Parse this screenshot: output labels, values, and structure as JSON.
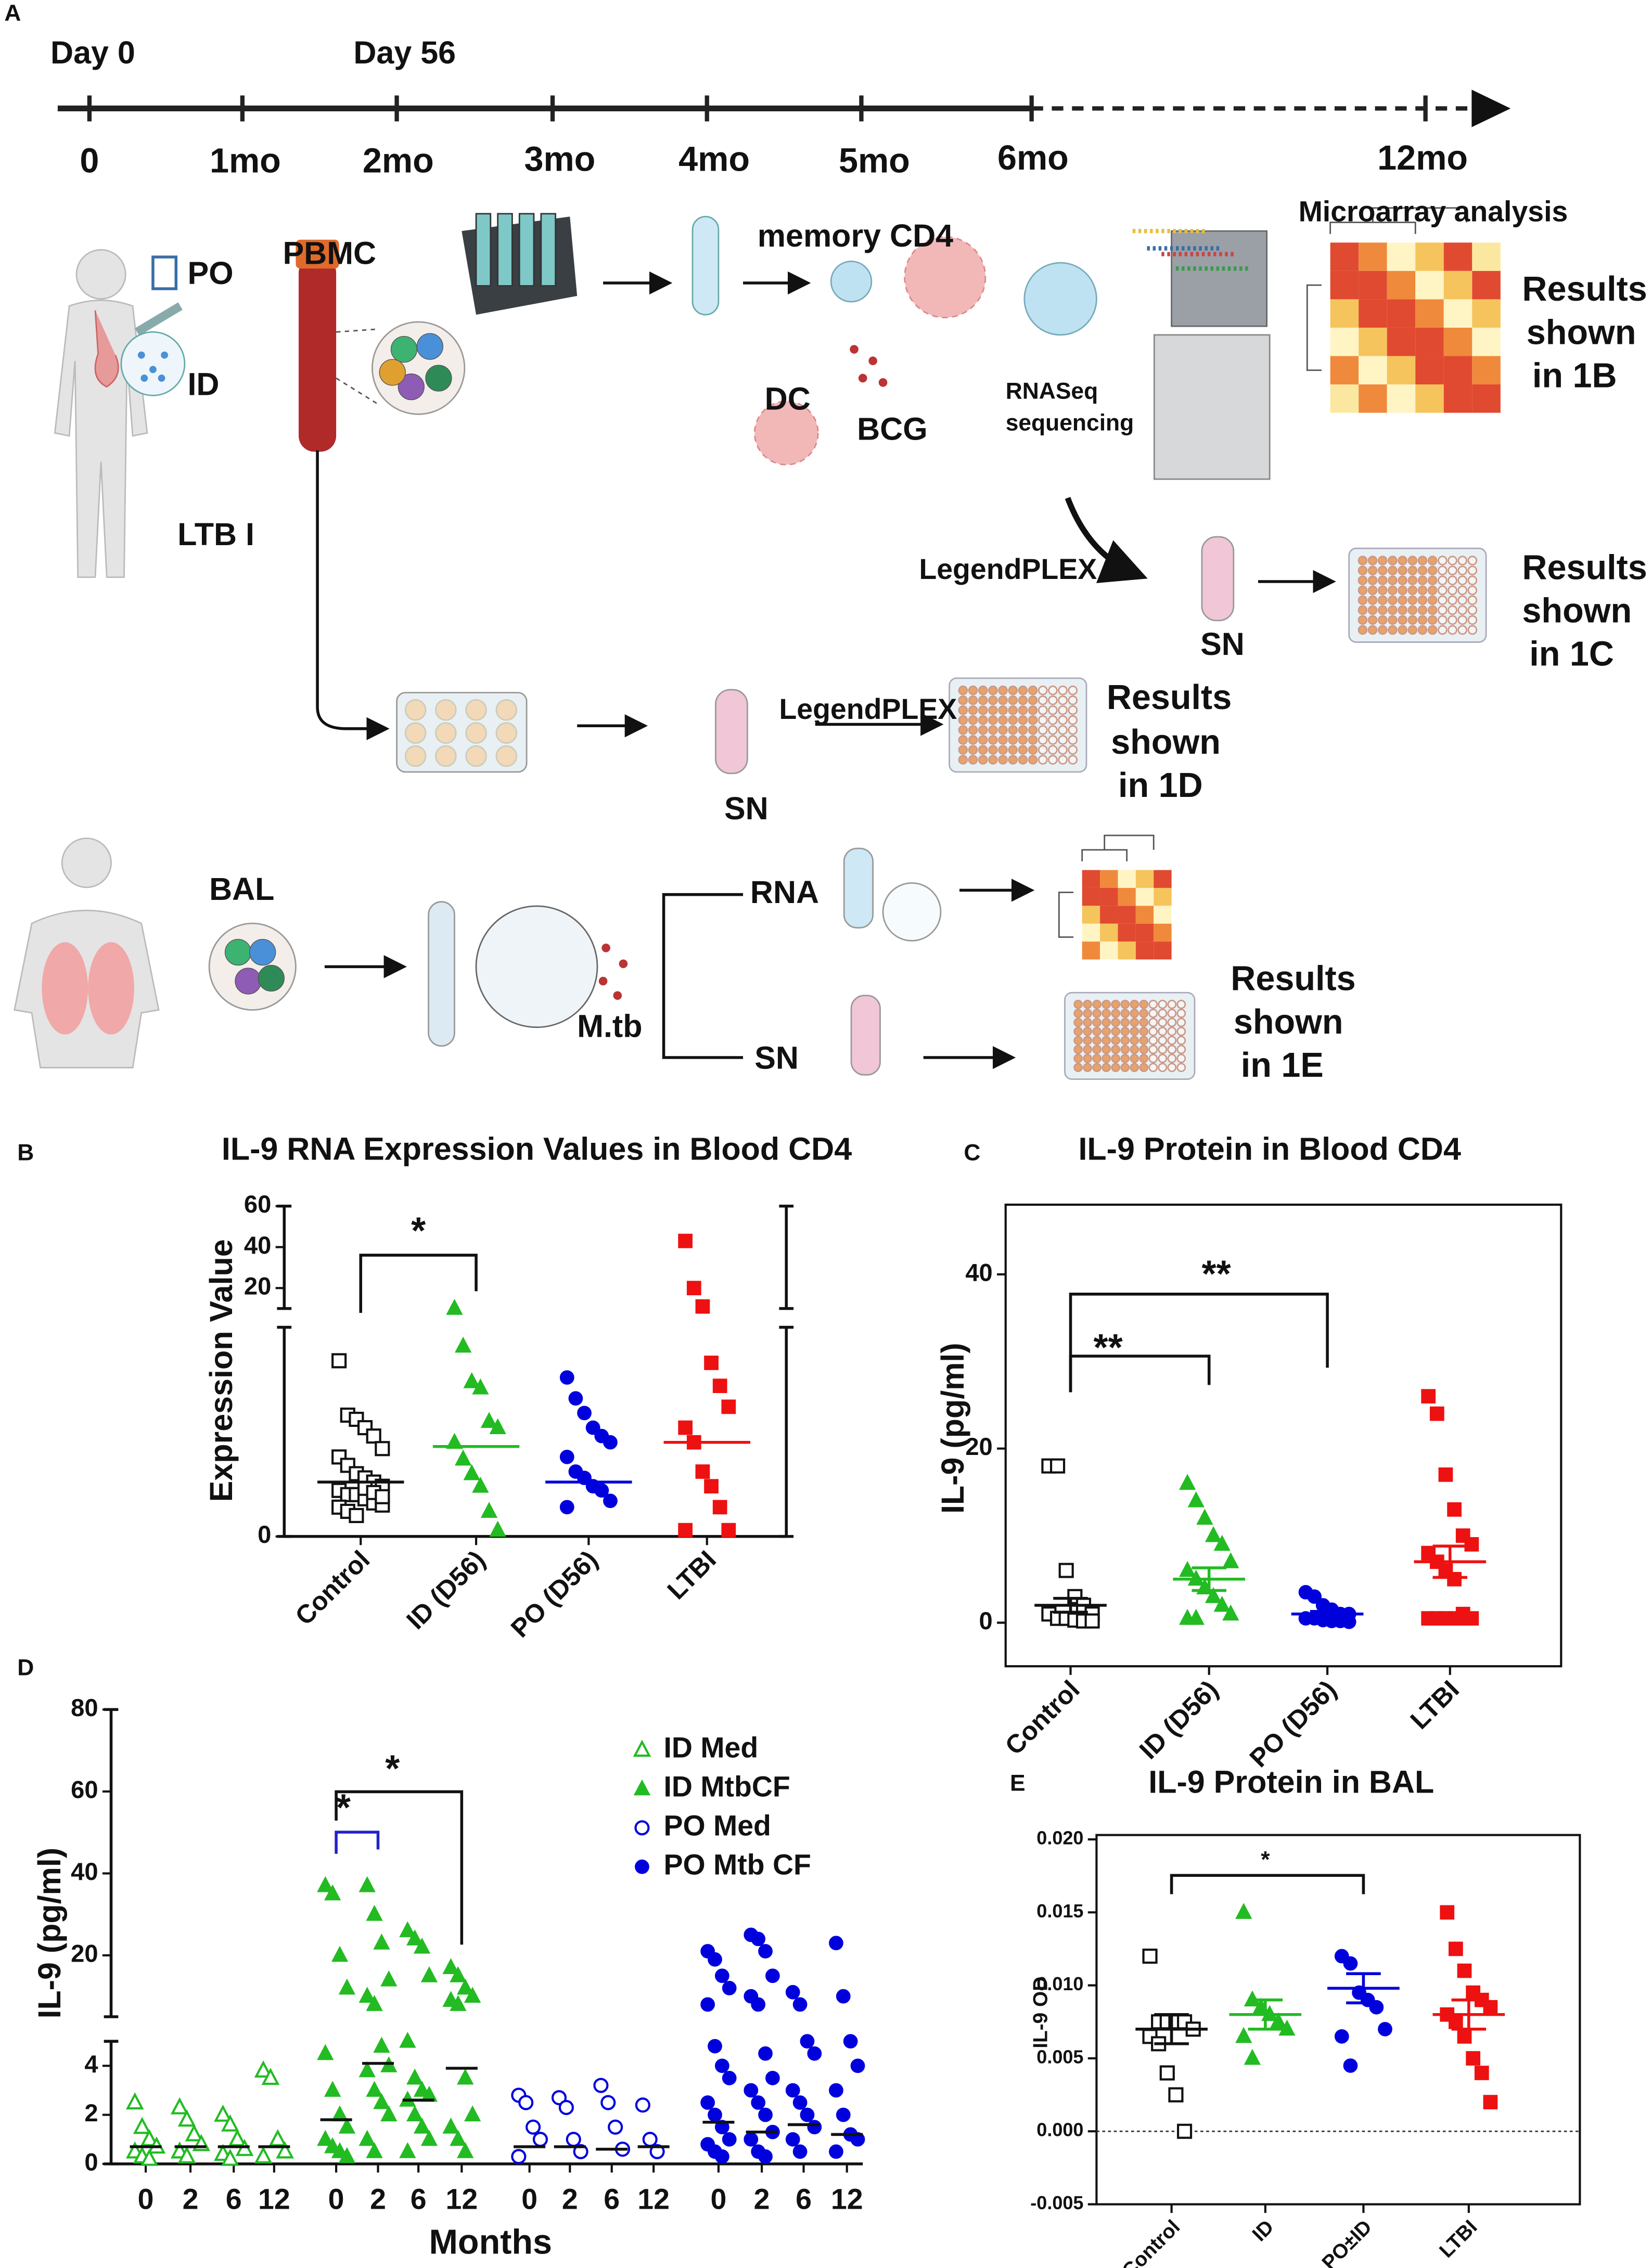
{
  "diagram": {
    "panel": "A",
    "texts": [
      "Day 0",
      "Day 56",
      "0",
      "1mo",
      "2mo",
      "3mo",
      "4mo",
      "5mo",
      "6mo",
      "12mo",
      "PO",
      "ID",
      "PBMC",
      "LTB I",
      "memory CD4",
      "DC",
      "BCG",
      "RNASeq",
      "sequencing",
      "Microarray analysis",
      "Results",
      "shown",
      "in 1B",
      "LegendPLEX",
      "SN",
      "Results",
      "shown",
      "in 1C",
      "LegendPLEX",
      "SN",
      "Results",
      "shown",
      "in 1D",
      "BAL",
      "RNA",
      "SN",
      "M.tb",
      "Results",
      "shown",
      "in 1E"
    ]
  },
  "chart_data": [
    {
      "type": "dot",
      "panel": "B",
      "title": "IL-9 RNA Expression Values in Blood CD4",
      "y_label": "Expression Value",
      "categories": [
        "Control",
        "ID (D56)",
        "PO (D56)",
        "LTBI"
      ],
      "y_segments": [
        {
          "ylim": [
            0,
            10
          ],
          "yticks": [
            0
          ]
        },
        {
          "ylim": [
            10,
            60
          ],
          "yticks": [
            20,
            40,
            60
          ]
        }
      ],
      "groups": [
        {
          "color": "#111111",
          "marker": "square-open",
          "values": [
            8.4,
            5.8,
            5.6,
            5.2,
            4.8,
            4.2,
            3.8,
            3.4,
            3.0,
            2.8,
            2.6,
            2.4,
            2.2,
            2.0,
            2.0,
            1.8,
            1.6,
            1.5,
            1.4,
            1.2,
            1.0,
            2.3,
            2.1,
            1.9
          ],
          "mean": 2.6
        },
        {
          "color": "#22bb22",
          "marker": "triangle",
          "values": [
            10.1,
            9.1,
            7.4,
            7.1,
            5.5,
            5.2,
            4.5,
            3.7,
            3.0,
            2.4,
            1.2,
            0.3
          ],
          "mean": 4.3
        },
        {
          "color": "#0000dd",
          "marker": "circle",
          "values": [
            7.6,
            6.6,
            5.9,
            5.2,
            4.8,
            4.5,
            3.8,
            3.1,
            2.8,
            2.4,
            2.2,
            1.7,
            1.4
          ],
          "mean": 2.6
        },
        {
          "color": "#ee1111",
          "marker": "square",
          "values": [
            43,
            20,
            11,
            8.3,
            7.2,
            6.2,
            5.2,
            4.5,
            3.1,
            2.4,
            1.4,
            0.3,
            0.3
          ],
          "mean": 4.5
        }
      ],
      "annotations": [
        {
          "text": "*",
          "from": 0,
          "to": 1,
          "color": "#111111"
        }
      ]
    },
    {
      "type": "dot",
      "panel": "C",
      "title": "IL-9 Protein  in Blood CD4",
      "y_label": "IL-9 (pg/ml)",
      "categories": [
        "Control",
        "ID (D56)",
        "PO (D56)",
        "LTBI"
      ],
      "ylim": [
        -5,
        48
      ],
      "yticks": [
        0,
        20,
        40
      ],
      "groups": [
        {
          "color": "#111111",
          "marker": "square-open",
          "values": [
            18,
            18,
            6,
            3,
            2,
            1,
            1,
            0.5,
            0.5,
            0.3,
            0.2,
            0.2
          ],
          "mean": 2,
          "sem": 0.8
        },
        {
          "color": "#22bb22",
          "marker": "triangle",
          "values": [
            16,
            14,
            12,
            10,
            9,
            7,
            6,
            5,
            4,
            3,
            2,
            1,
            0.5,
            0.5
          ],
          "mean": 5,
          "sem": 1.3
        },
        {
          "color": "#0000dd",
          "marker": "circle",
          "values": [
            3.5,
            3,
            2,
            1.5,
            1,
            1,
            0.5,
            0.5,
            0.3,
            0.2,
            0.2,
            0.1
          ],
          "mean": 1,
          "sem": 0.3
        },
        {
          "color": "#ee1111",
          "marker": "square",
          "values": [
            26,
            24,
            17,
            13,
            10,
            9,
            8,
            7,
            6,
            5,
            1,
            0.5,
            0.5,
            0.5,
            0.5,
            0.5,
            0.5
          ],
          "mean": 7,
          "sem": 1.8
        }
      ],
      "annotations": [
        {
          "text": "**",
          "from": 0,
          "to": 1,
          "color": "#111111"
        },
        {
          "text": "**",
          "from": 0,
          "to": 2,
          "color": "#111111"
        }
      ]
    },
    {
      "type": "dot-series",
      "panel": "D",
      "y_label": "IL-9 (pg/ml)",
      "x_label": "Months",
      "categories": [
        "0",
        "2",
        "6",
        "12",
        "0",
        "2",
        "6",
        "12",
        "0",
        "2",
        "6",
        "12",
        "0",
        "2",
        "6",
        "12"
      ],
      "y_segments": [
        {
          "ylim": [
            0,
            5
          ],
          "yticks": [
            0,
            2,
            4
          ]
        },
        {
          "ylim": [
            5,
            80
          ],
          "yticks": [
            20,
            40,
            60,
            80
          ]
        }
      ],
      "series": [
        {
          "name": "ID Med",
          "color": "#22bb22",
          "marker": "triangle-open",
          "values": [
            [
              2.5,
              1.5,
              1,
              0.7,
              0.5,
              0.3,
              0.2
            ],
            [
              2.3,
              1.8,
              1.2,
              0.8,
              0.5,
              0.3
            ],
            [
              2,
              1.6,
              1,
              0.6,
              0.4,
              0.2
            ],
            [
              3.8,
              3.5,
              1,
              0.5,
              0.3
            ]
          ],
          "medians": [
            0.7,
            0.7,
            0.7,
            0.7
          ]
        },
        {
          "name": "ID MtbCF",
          "color": "#22bb22",
          "marker": "triangle",
          "values": [
            [
              37,
              35,
              20,
              12,
              4.5,
              3,
              2,
              1.5,
              1,
              0.7,
              0.5,
              0.3
            ],
            [
              37,
              30,
              23,
              14,
              10,
              8,
              4.8,
              4,
              3.8,
              3,
              2.5,
              2,
              1,
              0.5
            ],
            [
              26,
              24,
              22,
              15,
              5,
              3.5,
              3,
              2.8,
              2.6,
              2,
              1.5,
              1,
              0.5
            ],
            [
              17,
              15,
              12,
              10,
              9,
              8,
              3.5,
              2,
              1.5,
              1,
              0.5
            ]
          ],
          "medians": [
            1.8,
            4.1,
            2.6,
            3.9
          ]
        },
        {
          "name": "PO Med",
          "color": "#0000dd",
          "marker": "circle-open",
          "values": [
            [
              2.8,
              2.5,
              1.5,
              1,
              0.3
            ],
            [
              2.7,
              2.3,
              1,
              0.5
            ],
            [
              3.2,
              2.5,
              1.5,
              0.6
            ],
            [
              2.4,
              1,
              0.5
            ]
          ],
          "medians": [
            0.7,
            0.7,
            0.6,
            0.7
          ]
        },
        {
          "name": "PO Mtb CF",
          "color": "#0000dd",
          "marker": "circle",
          "values": [
            [
              21,
              19,
              15,
              12,
              8,
              4.8,
              4,
              3.5,
              2.5,
              2,
              1.5,
              1,
              0.8,
              0.5,
              0.3
            ],
            [
              25,
              24,
              21,
              15,
              10,
              8,
              4.5,
              3.5,
              3,
              2.5,
              2,
              1.3,
              1,
              0.5,
              0.3
            ],
            [
              11,
              8,
              5,
              4.5,
              3,
              2.5,
              2,
              1.5,
              1,
              0.5
            ],
            [
              23,
              10,
              5,
              4,
              3,
              2,
              1.2,
              1,
              0.5
            ]
          ],
          "medians": [
            1.7,
            1.3,
            1.6,
            1.2
          ]
        }
      ],
      "annotations": [
        {
          "text": "*",
          "from": 4,
          "to": 5,
          "color": "#2222cc"
        },
        {
          "text": "*",
          "from": 4,
          "to": 7,
          "color": "#111111"
        }
      ]
    },
    {
      "type": "dot",
      "panel": "E",
      "title": "IL-9 Protein  in BAL",
      "y_label": "IL-9 OD",
      "categories": [
        "Control",
        "ID",
        "PO±ID",
        "LTBI"
      ],
      "ylim": [
        -0.005,
        0.0203
      ],
      "zero_line": true,
      "yticks": [
        -0.005,
        {
          "value": 0,
          "label": "0.000"
        },
        0.005,
        {
          "value": 0.01,
          "label": "0.010"
        },
        0.015,
        {
          "value": 0.02,
          "label": "0.020"
        }
      ],
      "groups": [
        {
          "color": "#111111",
          "marker": "square-open",
          "values": [
            0.012,
            0.0075,
            0.0075,
            0.0075,
            0.0075,
            0.007,
            0.0065,
            0.006,
            0.004,
            0.0025,
            0
          ],
          "mean": 0.007,
          "sem": 0.001
        },
        {
          "color": "#22bb22",
          "marker": "triangle",
          "values": [
            0.015,
            0.009,
            0.0085,
            0.008,
            0.0075,
            0.007,
            0.0065,
            0.005
          ],
          "mean": 0.008,
          "sem": 0.001
        },
        {
          "color": "#0000dd",
          "marker": "circle",
          "values": [
            0.012,
            0.0115,
            0.0095,
            0.009,
            0.0085,
            0.007,
            0.0065,
            0.0045
          ],
          "mean": 0.0098,
          "sem": 0.001
        },
        {
          "color": "#ee1111",
          "marker": "square",
          "values": [
            0.015,
            0.0125,
            0.011,
            0.0095,
            0.009,
            0.0085,
            0.008,
            0.0075,
            0.0065,
            0.005,
            0.004,
            0.002
          ],
          "mean": 0.008,
          "sem": 0.001
        }
      ],
      "annotations": [
        {
          "text": "*",
          "from": 0,
          "to": 2,
          "color": "#111111"
        }
      ]
    }
  ]
}
